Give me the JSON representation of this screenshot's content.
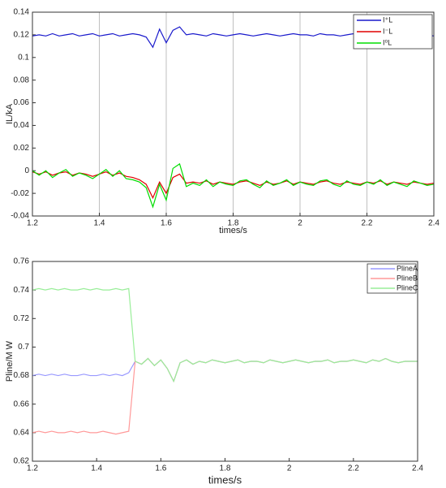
{
  "chart_data": [
    {
      "type": "line",
      "xlabel": "times/s",
      "ylabel": "IL/kA",
      "xlim": [
        1.2,
        2.4
      ],
      "xticks": [
        1.2,
        1.4,
        1.6,
        1.8,
        2,
        2.2,
        2.4
      ],
      "ylim": [
        -0.04,
        0.14
      ],
      "yticks": [
        -0.04,
        -0.02,
        0,
        0.02,
        0.04,
        0.06,
        0.08,
        0.1,
        0.12,
        0.14
      ],
      "grid": "x",
      "legend": "upper right",
      "x": [
        1.2,
        1.22,
        1.24,
        1.26,
        1.28,
        1.3,
        1.32,
        1.34,
        1.36,
        1.38,
        1.4,
        1.42,
        1.44,
        1.46,
        1.48,
        1.5,
        1.52,
        1.54,
        1.56,
        1.58,
        1.6,
        1.62,
        1.64,
        1.66,
        1.68,
        1.7,
        1.72,
        1.74,
        1.76,
        1.78,
        1.8,
        1.82,
        1.84,
        1.86,
        1.88,
        1.9,
        1.92,
        1.94,
        1.96,
        1.98,
        2,
        2.02,
        2.04,
        2.06,
        2.08,
        2.1,
        2.12,
        2.14,
        2.16,
        2.18,
        2.2,
        2.22,
        2.24,
        2.26,
        2.28,
        2.3,
        2.32,
        2.34,
        2.36,
        2.38,
        2.4
      ],
      "series": [
        {
          "name": "I⁺L",
          "color": "#1a1acc",
          "values": [
            0.119,
            0.12,
            0.119,
            0.121,
            0.119,
            0.12,
            0.121,
            0.119,
            0.12,
            0.121,
            0.119,
            0.12,
            0.121,
            0.119,
            0.12,
            0.121,
            0.12,
            0.118,
            0.109,
            0.125,
            0.113,
            0.124,
            0.127,
            0.12,
            0.121,
            0.12,
            0.119,
            0.121,
            0.12,
            0.119,
            0.12,
            0.121,
            0.12,
            0.119,
            0.12,
            0.121,
            0.12,
            0.119,
            0.12,
            0.121,
            0.12,
            0.12,
            0.119,
            0.121,
            0.12,
            0.12,
            0.119,
            0.12,
            0.121,
            0.12,
            0.12,
            0.119,
            0.12,
            0.12,
            0.121,
            0.12,
            0.119,
            0.12,
            0.12,
            0.12,
            0.119
          ]
        },
        {
          "name": "I⁻L",
          "color": "#e00000",
          "values": [
            -0.001,
            -0.003,
            -0.001,
            -0.004,
            -0.002,
            -0.001,
            -0.004,
            -0.002,
            -0.003,
            -0.005,
            -0.003,
            -0.001,
            -0.004,
            -0.002,
            -0.005,
            -0.006,
            -0.008,
            -0.012,
            -0.024,
            -0.01,
            -0.02,
            -0.006,
            -0.003,
            -0.011,
            -0.01,
            -0.011,
            -0.009,
            -0.012,
            -0.01,
            -0.011,
            -0.012,
            -0.01,
            -0.009,
            -0.011,
            -0.013,
            -0.01,
            -0.012,
            -0.011,
            -0.009,
            -0.012,
            -0.01,
            -0.011,
            -0.012,
            -0.01,
            -0.009,
            -0.011,
            -0.012,
            -0.01,
            -0.011,
            -0.012,
            -0.01,
            -0.011,
            -0.009,
            -0.012,
            -0.01,
            -0.011,
            -0.012,
            -0.01,
            -0.011,
            -0.012,
            -0.011
          ]
        },
        {
          "name": "I⁰L",
          "color": "#00dd00",
          "values": [
            0,
            -0.004,
            0,
            -0.006,
            -0.002,
            0.001,
            -0.005,
            -0.002,
            -0.004,
            -0.007,
            -0.003,
            0.001,
            -0.005,
            0,
            -0.007,
            -0.008,
            -0.01,
            -0.015,
            -0.032,
            -0.012,
            -0.026,
            0.002,
            0.006,
            -0.014,
            -0.011,
            -0.013,
            -0.008,
            -0.014,
            -0.01,
            -0.012,
            -0.013,
            -0.009,
            -0.008,
            -0.012,
            -0.015,
            -0.009,
            -0.013,
            -0.011,
            -0.008,
            -0.013,
            -0.01,
            -0.012,
            -0.013,
            -0.009,
            -0.008,
            -0.012,
            -0.014,
            -0.009,
            -0.012,
            -0.013,
            -0.01,
            -0.012,
            -0.008,
            -0.013,
            -0.01,
            -0.012,
            -0.014,
            -0.009,
            -0.011,
            -0.013,
            -0.012
          ]
        }
      ]
    },
    {
      "type": "line",
      "xlabel": "times/s",
      "ylabel": "Pline/M W",
      "xlim": [
        1.2,
        2.4
      ],
      "xticks": [
        1.2,
        1.4,
        1.6,
        1.8,
        2,
        2.2,
        2.4
      ],
      "ylim": [
        0.62,
        0.76
      ],
      "yticks": [
        0.62,
        0.64,
        0.66,
        0.68,
        0.7,
        0.72,
        0.74,
        0.76
      ],
      "grid": false,
      "legend": "upper right",
      "x": [
        1.2,
        1.22,
        1.24,
        1.26,
        1.28,
        1.3,
        1.32,
        1.34,
        1.36,
        1.38,
        1.4,
        1.42,
        1.44,
        1.46,
        1.48,
        1.5,
        1.52,
        1.54,
        1.56,
        1.58,
        1.6,
        1.62,
        1.64,
        1.66,
        1.68,
        1.7,
        1.72,
        1.74,
        1.76,
        1.78,
        1.8,
        1.82,
        1.84,
        1.86,
        1.88,
        1.9,
        1.92,
        1.94,
        1.96,
        1.98,
        2,
        2.02,
        2.04,
        2.06,
        2.08,
        2.1,
        2.12,
        2.14,
        2.16,
        2.18,
        2.2,
        2.22,
        2.24,
        2.26,
        2.28,
        2.3,
        2.32,
        2.34,
        2.36,
        2.38,
        2.4
      ],
      "series": [
        {
          "name": "PlineA",
          "color": "#9999ff",
          "values": [
            0.68,
            0.681,
            0.68,
            0.681,
            0.68,
            0.681,
            0.68,
            0.68,
            0.681,
            0.68,
            0.68,
            0.681,
            0.68,
            0.681,
            0.68,
            0.682,
            0.69,
            0.688,
            0.692,
            0.687,
            0.691,
            0.685,
            0.676,
            0.689,
            0.691,
            0.688,
            0.69,
            0.689,
            0.691,
            0.69,
            0.689,
            0.69,
            0.691,
            0.689,
            0.69,
            0.69,
            0.689,
            0.691,
            0.69,
            0.689,
            0.69,
            0.691,
            0.69,
            0.689,
            0.69,
            0.69,
            0.691,
            0.689,
            0.69,
            0.69,
            0.691,
            0.69,
            0.689,
            0.691,
            0.69,
            0.692,
            0.69,
            0.689,
            0.69,
            0.69,
            0.69
          ]
        },
        {
          "name": "PlineB",
          "color": "#ff9999",
          "values": [
            0.64,
            0.641,
            0.64,
            0.641,
            0.64,
            0.64,
            0.641,
            0.64,
            0.641,
            0.64,
            0.64,
            0.641,
            0.64,
            0.639,
            0.64,
            0.641,
            0.69,
            0.688,
            0.692,
            0.687,
            0.691,
            0.685,
            0.676,
            0.689,
            0.691,
            0.688,
            0.69,
            0.689,
            0.691,
            0.69,
            0.689,
            0.69,
            0.691,
            0.689,
            0.69,
            0.69,
            0.689,
            0.691,
            0.69,
            0.689,
            0.69,
            0.691,
            0.69,
            0.689,
            0.69,
            0.69,
            0.691,
            0.689,
            0.69,
            0.69,
            0.691,
            0.69,
            0.689,
            0.691,
            0.69,
            0.692,
            0.69,
            0.689,
            0.69,
            0.69,
            0.69
          ]
        },
        {
          "name": "PlineC",
          "color": "#99ee99",
          "values": [
            0.74,
            0.741,
            0.74,
            0.741,
            0.74,
            0.741,
            0.74,
            0.74,
            0.741,
            0.74,
            0.741,
            0.74,
            0.74,
            0.741,
            0.74,
            0.741,
            0.69,
            0.688,
            0.692,
            0.687,
            0.691,
            0.685,
            0.676,
            0.689,
            0.691,
            0.688,
            0.69,
            0.689,
            0.691,
            0.69,
            0.689,
            0.69,
            0.691,
            0.689,
            0.69,
            0.69,
            0.689,
            0.691,
            0.69,
            0.689,
            0.69,
            0.691,
            0.69,
            0.689,
            0.69,
            0.69,
            0.691,
            0.689,
            0.69,
            0.69,
            0.691,
            0.69,
            0.689,
            0.691,
            0.69,
            0.692,
            0.69,
            0.689,
            0.69,
            0.69,
            0.69
          ]
        }
      ]
    }
  ]
}
